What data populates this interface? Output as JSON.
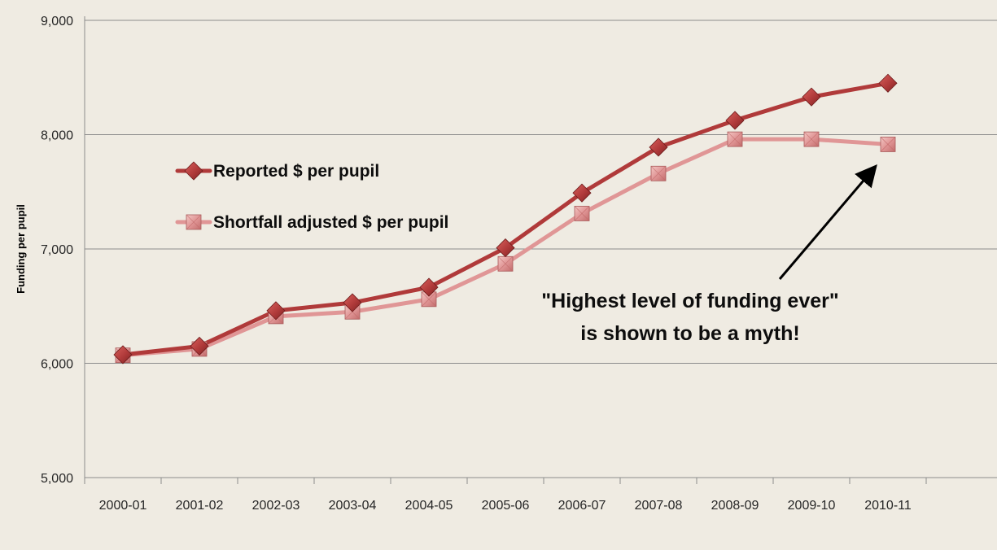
{
  "chart_data": {
    "type": "line",
    "categories": [
      "2000-01",
      "2001-02",
      "2002-03",
      "2003-04",
      "2004-05",
      "2005-06",
      "2006-07",
      "2007-08",
      "2008-09",
      "2009-10",
      "2010-11"
    ],
    "series": [
      {
        "name": "Reported $ per pupil",
        "values": [
          6075,
          6150,
          6460,
          6530,
          6665,
          7010,
          7490,
          7890,
          8125,
          8330,
          8450
        ],
        "color": "#b03a3a",
        "marker": "diamond"
      },
      {
        "name": "Shortfall adjusted $ per pupil",
        "values": [
          6070,
          6125,
          6410,
          6450,
          6560,
          6870,
          7310,
          7660,
          7960,
          7960,
          7915
        ],
        "color": "#e09696",
        "marker": "square"
      }
    ],
    "y_ticks": [
      "5,000",
      "6,000",
      "7,000",
      "8,000",
      "9,000"
    ],
    "ylim": [
      5000,
      9000
    ],
    "ylabel": "Funding per pupil",
    "xlabel": "",
    "title": "",
    "grid": true,
    "legend_position": "upper-left",
    "background": "#efebe2",
    "annotation": {
      "lines": [
        "\"Highest level of funding ever\"",
        "is shown to be a myth!"
      ],
      "target_category": "2010-11",
      "target_series": "Shortfall adjusted $ per pupil"
    }
  }
}
